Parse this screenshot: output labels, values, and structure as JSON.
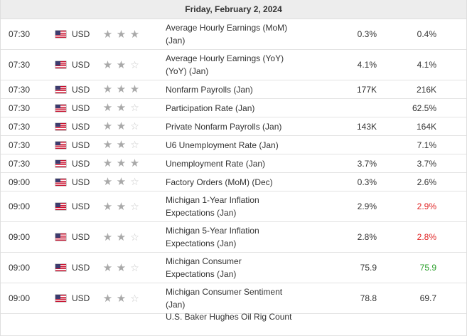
{
  "date_header": "Friday, February 2, 2024",
  "colors": {
    "negative": "#e02424",
    "positive": "#2ca02c",
    "header_bg": "#ededed",
    "star": "#a9a9a9"
  },
  "icons": {
    "flag": "us-flag-icon",
    "star_filled": "star-filled-icon",
    "star_empty": "star-empty-icon"
  },
  "rows": [
    {
      "time": "07:30",
      "currency": "USD",
      "importance": 3,
      "event": "Average Hourly Earnings (MoM) (Jan)",
      "actual": "0.3%",
      "forecast": "0.4%",
      "forecast_status": "neutral"
    },
    {
      "time": "07:30",
      "currency": "USD",
      "importance": 2,
      "event": "Average Hourly Earnings (YoY) (YoY) (Jan)",
      "actual": "4.1%",
      "forecast": "4.1%",
      "forecast_status": "neutral"
    },
    {
      "time": "07:30",
      "currency": "USD",
      "importance": 3,
      "event": "Nonfarm Payrolls (Jan)",
      "actual": "177K",
      "forecast": "216K",
      "forecast_status": "neutral"
    },
    {
      "time": "07:30",
      "currency": "USD",
      "importance": 2,
      "event": "Participation Rate (Jan)",
      "actual": "",
      "forecast": "62.5%",
      "forecast_status": "neutral"
    },
    {
      "time": "07:30",
      "currency": "USD",
      "importance": 2,
      "event": "Private Nonfarm Payrolls (Jan)",
      "actual": "143K",
      "forecast": "164K",
      "forecast_status": "neutral"
    },
    {
      "time": "07:30",
      "currency": "USD",
      "importance": 2,
      "event": "U6 Unemployment Rate (Jan)",
      "actual": "",
      "forecast": "7.1%",
      "forecast_status": "neutral"
    },
    {
      "time": "07:30",
      "currency": "USD",
      "importance": 3,
      "event": "Unemployment Rate (Jan)",
      "actual": "3.7%",
      "forecast": "3.7%",
      "forecast_status": "neutral"
    },
    {
      "time": "09:00",
      "currency": "USD",
      "importance": 2,
      "event": "Factory Orders (MoM) (Dec)",
      "actual": "0.3%",
      "forecast": "2.6%",
      "forecast_status": "neutral"
    },
    {
      "time": "09:00",
      "currency": "USD",
      "importance": 2,
      "event": "Michigan 1-Year Inflation Expectations (Jan)",
      "actual": "2.9%",
      "forecast": "2.9%",
      "forecast_status": "negative"
    },
    {
      "time": "09:00",
      "currency": "USD",
      "importance": 2,
      "event": "Michigan 5-Year Inflation Expectations (Jan)",
      "actual": "2.8%",
      "forecast": "2.8%",
      "forecast_status": "negative"
    },
    {
      "time": "09:00",
      "currency": "USD",
      "importance": 2,
      "event": "Michigan Consumer Expectations (Jan)",
      "actual": "75.9",
      "forecast": "75.9",
      "forecast_status": "positive"
    },
    {
      "time": "09:00",
      "currency": "USD",
      "importance": 2,
      "event": "Michigan Consumer Sentiment (Jan)",
      "actual": "78.8",
      "forecast": "69.7",
      "forecast_status": "neutral"
    },
    {
      "time": "",
      "currency": "",
      "importance": 0,
      "event": "U.S. Baker Hughes Oil Rig Count",
      "actual": "",
      "forecast": "",
      "forecast_status": "neutral"
    }
  ]
}
